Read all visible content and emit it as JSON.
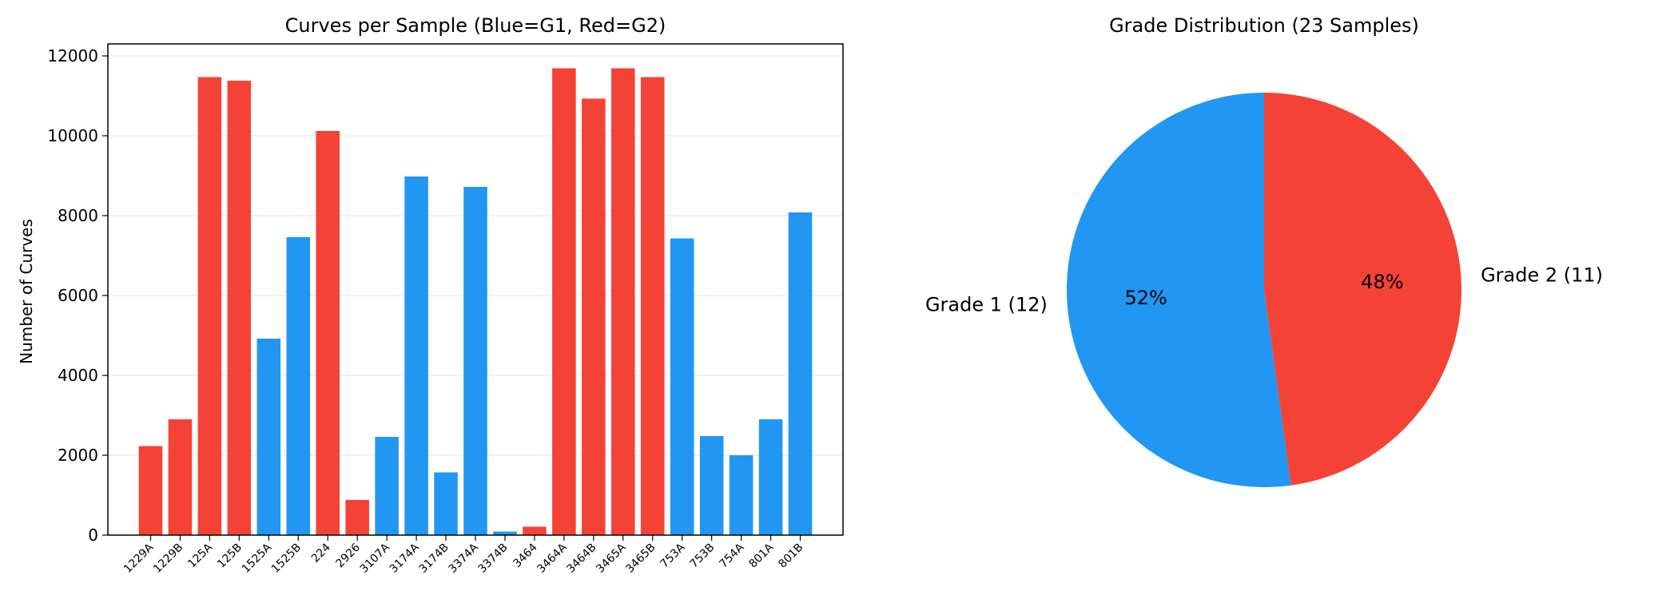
{
  "chart_data": [
    {
      "type": "bar",
      "title": "Curves per Sample (Blue=G1, Red=G2)",
      "xlabel": "",
      "ylabel": "Number of Curves",
      "ylim": [
        0,
        12300
      ],
      "yticks": [
        0,
        2000,
        4000,
        6000,
        8000,
        10000,
        12000
      ],
      "grid": "horizontal",
      "colors": {
        "G1": "#2196F3",
        "G2": "#F44336"
      },
      "categories": [
        "1229A",
        "1229B",
        "125A",
        "125B",
        "1525A",
        "1525B",
        "224",
        "2926",
        "3107A",
        "3174A",
        "3174B",
        "3374A",
        "3374B",
        "3464",
        "3464A",
        "3464B",
        "3465A",
        "3465B",
        "753A",
        "753B",
        "754A",
        "801A",
        "801B"
      ],
      "values": [
        2230,
        2900,
        11470,
        11380,
        4920,
        7460,
        10120,
        880,
        2460,
        8980,
        1570,
        8720,
        90,
        210,
        11690,
        10930,
        11690,
        11470,
        7430,
        2480,
        2000,
        2900,
        8080
      ],
      "groups": [
        "G2",
        "G2",
        "G2",
        "G2",
        "G1",
        "G1",
        "G2",
        "G2",
        "G1",
        "G1",
        "G1",
        "G1",
        "G1",
        "G2",
        "G2",
        "G2",
        "G2",
        "G2",
        "G1",
        "G1",
        "G1",
        "G1",
        "G1"
      ]
    },
    {
      "type": "pie",
      "title": "Grade Distribution (23 Samples)",
      "slices": [
        {
          "label": "Grade 1 (12)",
          "value": 12,
          "pct_label": "52%",
          "color": "#2196F3"
        },
        {
          "label": "Grade 2 (11)",
          "value": 11,
          "pct_label": "48%",
          "color": "#F44336"
        }
      ]
    }
  ]
}
